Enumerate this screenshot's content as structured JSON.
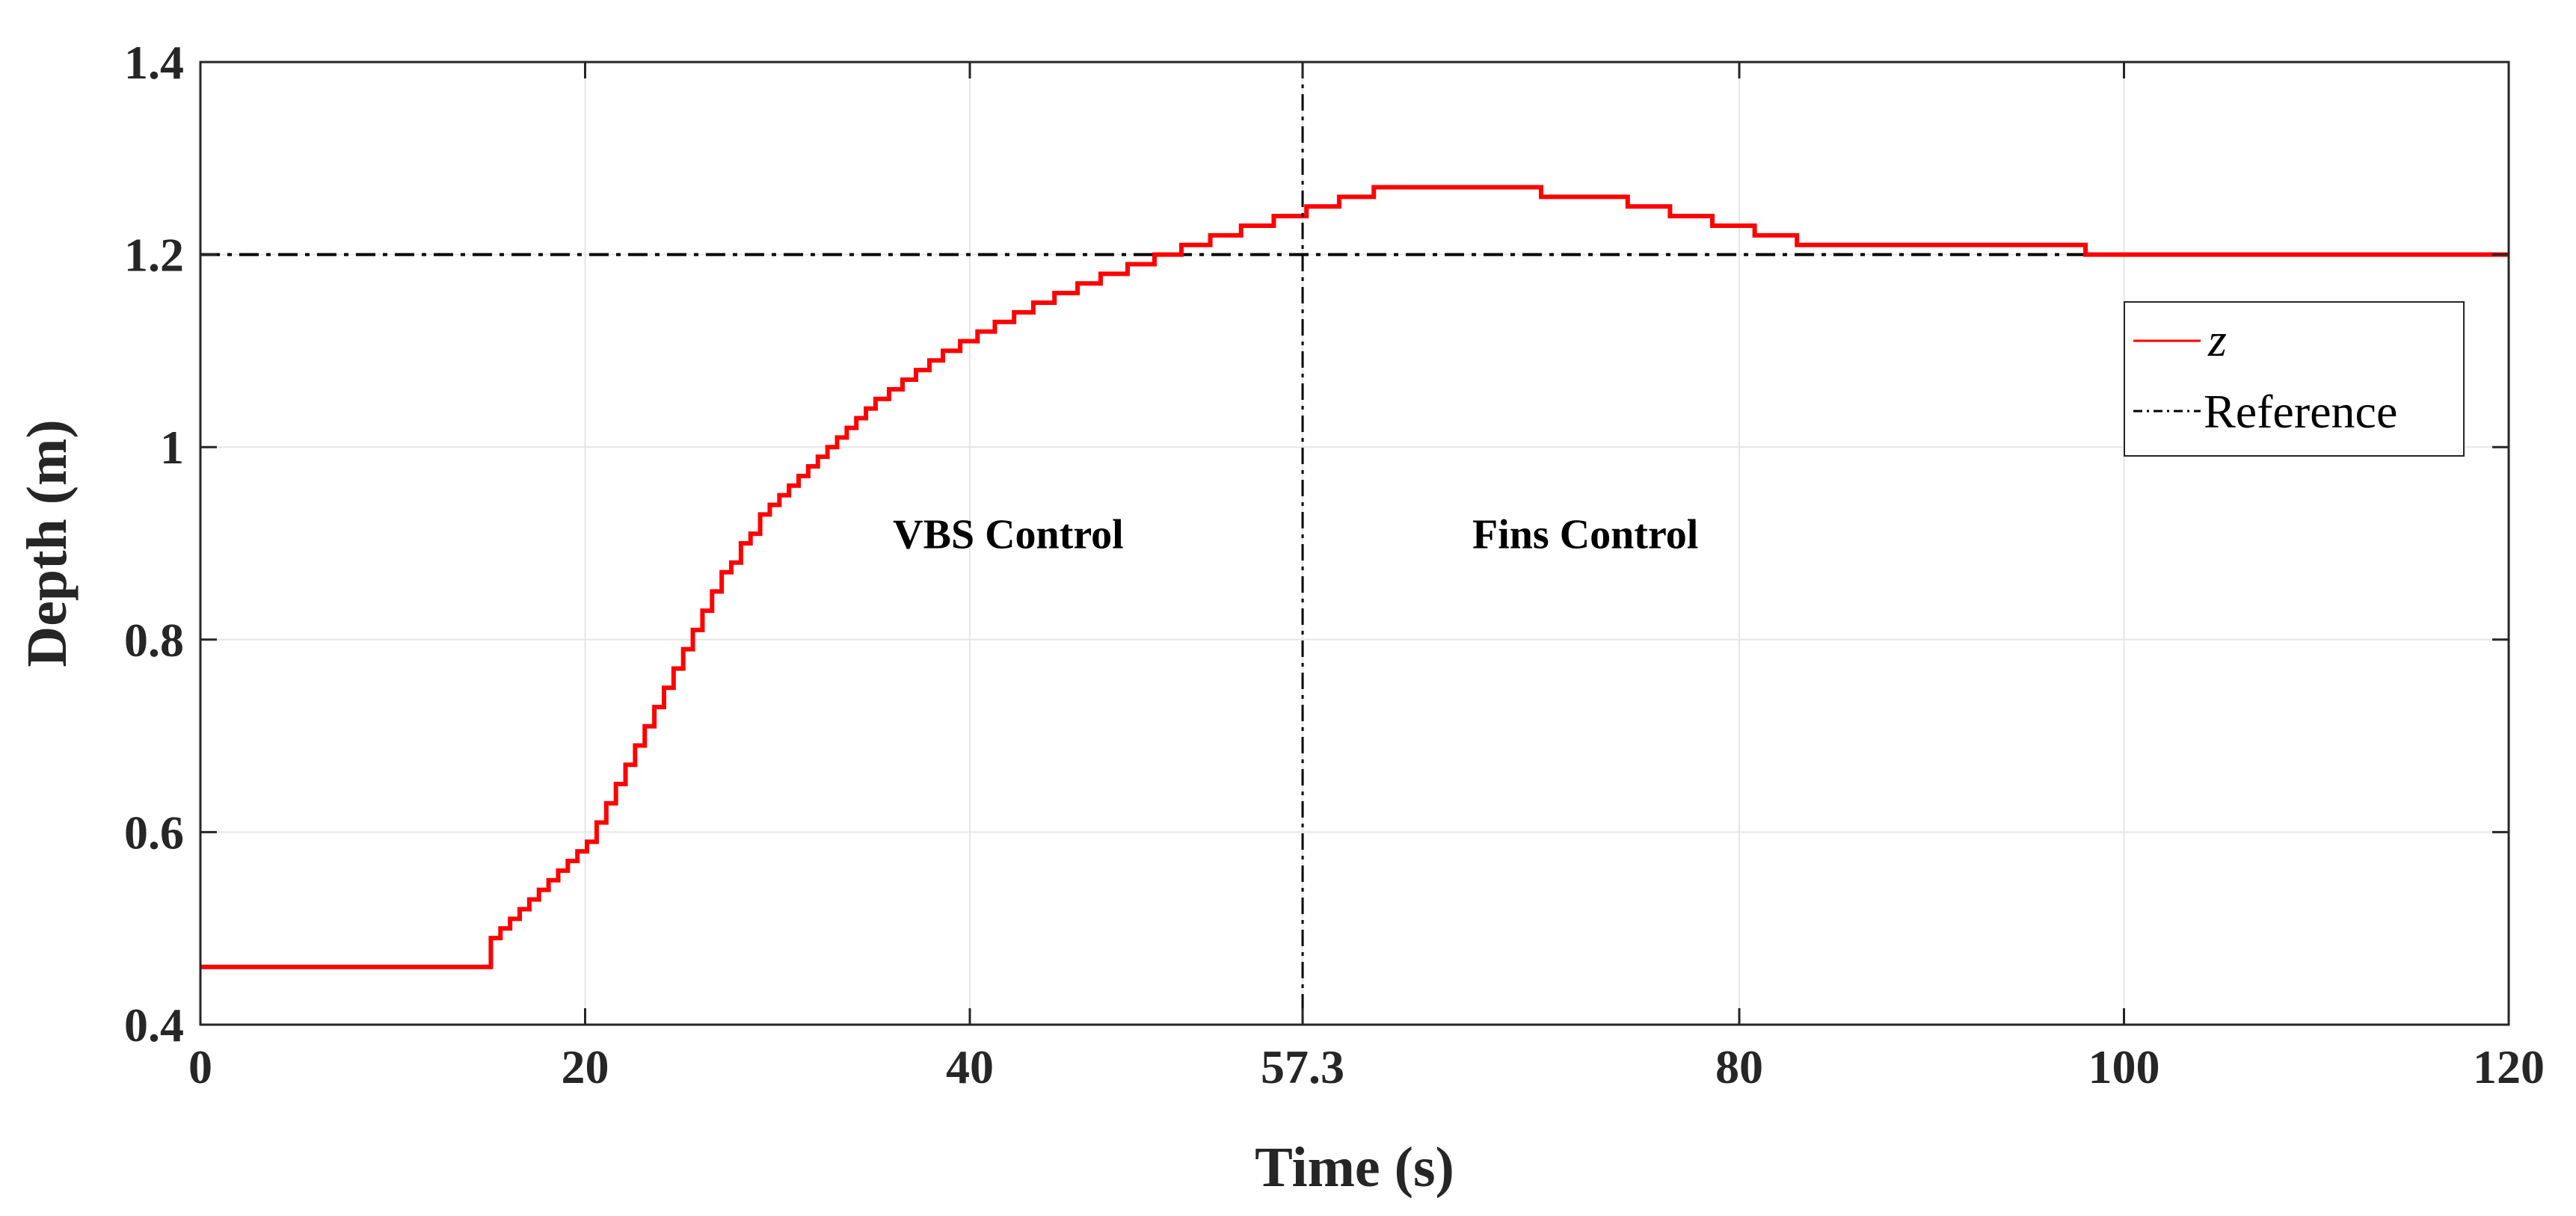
{
  "chart_data": {
    "type": "line",
    "title": "",
    "xlabel": "Time (s)",
    "ylabel": "Depth (m)",
    "xlim": [
      0,
      120
    ],
    "ylim": [
      0.4,
      1.4
    ],
    "xticks": [
      0,
      20,
      40,
      57.3,
      80,
      100,
      120
    ],
    "xtick_labels": [
      "0",
      "20",
      "40",
      "57.3",
      "80",
      "100",
      "120"
    ],
    "yticks": [
      0.4,
      0.6,
      0.8,
      1.0,
      1.2,
      1.4
    ],
    "ytick_labels": [
      "0.4",
      "0.6",
      "0.8",
      "1",
      "1.2",
      "1.4"
    ],
    "grid": true,
    "legend_position": "right",
    "series": [
      {
        "name": "z",
        "color": "#ff0000",
        "style": "stairs",
        "x": [
          0,
          14.9,
          15.1,
          15.6,
          16.1,
          16.6,
          17.1,
          17.6,
          18.1,
          18.6,
          19.1,
          19.6,
          20.1,
          20.6,
          21.1,
          21.6,
          22.1,
          22.6,
          23.1,
          23.6,
          24.1,
          24.6,
          25.1,
          25.6,
          26.1,
          26.6,
          27.1,
          27.6,
          28.1,
          28.6,
          29.1,
          29.6,
          30.1,
          30.6,
          31.1,
          31.6,
          32.1,
          32.6,
          33.1,
          33.6,
          34.1,
          34.6,
          35.1,
          35.8,
          36.5,
          37.2,
          37.9,
          38.6,
          39.5,
          40.4,
          41.3,
          42.3,
          43.3,
          44.4,
          45.6,
          46.8,
          48.2,
          49.6,
          51.0,
          52.5,
          54.1,
          55.8,
          57.5,
          59.2,
          61.0,
          63.0,
          65.1,
          67.4,
          69.7,
          72.0,
          74.2,
          76.4,
          78.6,
          80.8,
          83.0,
          85.2,
          87.5,
          89.8,
          92.1,
          94.4,
          96.7,
          98.0,
          98.4,
          120
        ],
        "y": [
          0.46,
          0.46,
          0.49,
          0.5,
          0.51,
          0.52,
          0.53,
          0.54,
          0.55,
          0.56,
          0.57,
          0.58,
          0.59,
          0.61,
          0.63,
          0.65,
          0.67,
          0.69,
          0.71,
          0.73,
          0.75,
          0.77,
          0.79,
          0.81,
          0.83,
          0.85,
          0.87,
          0.88,
          0.9,
          0.91,
          0.93,
          0.94,
          0.95,
          0.96,
          0.97,
          0.98,
          0.99,
          1.0,
          1.01,
          1.02,
          1.03,
          1.04,
          1.05,
          1.06,
          1.07,
          1.08,
          1.09,
          1.1,
          1.11,
          1.12,
          1.13,
          1.14,
          1.15,
          1.16,
          1.17,
          1.18,
          1.19,
          1.2,
          1.21,
          1.22,
          1.23,
          1.24,
          1.25,
          1.26,
          1.27,
          1.27,
          1.27,
          1.27,
          1.26,
          1.26,
          1.25,
          1.24,
          1.23,
          1.22,
          1.21,
          1.21,
          1.21,
          1.21,
          1.21,
          1.21,
          1.21,
          1.2,
          1.2,
          1.2
        ]
      },
      {
        "name": "Reference",
        "color": "#000000",
        "style": "dashdot",
        "x": [
          0,
          120
        ],
        "y": [
          1.2,
          1.2
        ]
      }
    ],
    "vertical_lines": [
      {
        "x": 57.3,
        "style": "dashdot",
        "color": "#000000"
      }
    ],
    "annotations": [
      {
        "text": "VBS Control",
        "x": 42.0,
        "y": 0.895
      },
      {
        "text": "Fins Control",
        "x": 72.0,
        "y": 0.895
      }
    ]
  }
}
